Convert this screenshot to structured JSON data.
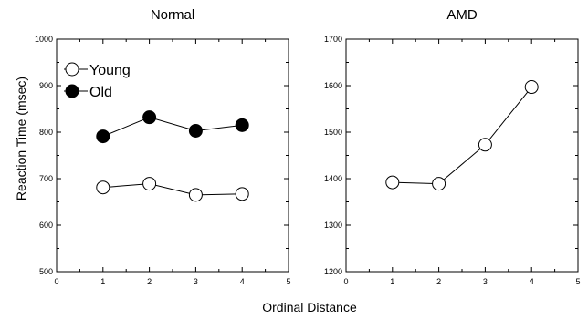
{
  "xlabel": "Ordinal Distance",
  "ylabel": "Reaction Time (msec)",
  "chart_data": [
    {
      "type": "line",
      "title": "Normal",
      "xlim": [
        0,
        5
      ],
      "ylim": [
        500,
        1000
      ],
      "x_ticks": [
        0,
        1,
        2,
        3,
        4,
        5
      ],
      "y_ticks": [
        500,
        600,
        700,
        800,
        900,
        1000
      ],
      "legend_placement": "top-left",
      "series": [
        {
          "name": "Young",
          "marker": "open-circle",
          "x": [
            1,
            2,
            3,
            4
          ],
          "values": [
            681,
            689,
            665,
            667
          ]
        },
        {
          "name": "Old",
          "marker": "filled-circle",
          "x": [
            1,
            2,
            3,
            4
          ],
          "values": [
            791,
            832,
            803,
            815
          ]
        }
      ]
    },
    {
      "type": "line",
      "title": "AMD",
      "xlim": [
        0,
        5
      ],
      "ylim": [
        1200,
        1700
      ],
      "x_ticks": [
        0,
        1,
        2,
        3,
        4,
        5
      ],
      "y_ticks": [
        1200,
        1300,
        1400,
        1500,
        1600,
        1700
      ],
      "series": [
        {
          "marker": "open-circle",
          "x": [
            1,
            2,
            3,
            4
          ],
          "values": [
            1392,
            1389,
            1473,
            1597
          ]
        }
      ]
    }
  ]
}
